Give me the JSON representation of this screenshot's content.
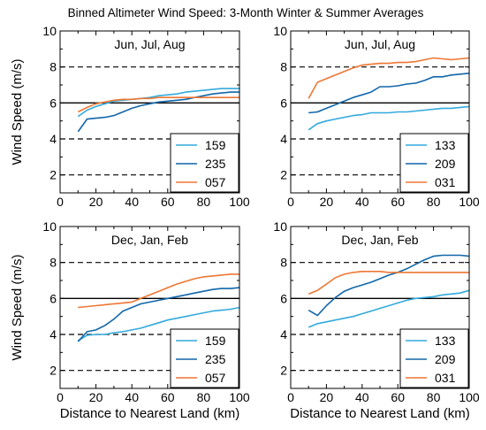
{
  "title": "Binned Altimeter Wind Speed: 3-Month Winter & Summer Averages",
  "colors": {
    "light_blue": "#33aadd",
    "dark_blue": "#1166aa",
    "orange": "#ee7733",
    "reference": "#000000"
  },
  "chart_data": [
    {
      "type": "line",
      "title": "Jun, Jul, Aug",
      "xlabel": "",
      "ylabel": "Wind Speed (m/s)",
      "xlim": [
        0,
        100
      ],
      "ylim": [
        1,
        10
      ],
      "xticks": [
        "0",
        "20",
        "40",
        "60",
        "80",
        "100"
      ],
      "yticks": [
        "2",
        "4",
        "6",
        "8",
        "10"
      ],
      "dashed_lines": [
        2,
        4,
        8
      ],
      "solid_line": 6,
      "legend": "bottom-right",
      "x": [
        10,
        15,
        20,
        25,
        30,
        35,
        40,
        45,
        50,
        55,
        60,
        65,
        70,
        75,
        80,
        85,
        90,
        95,
        100
      ],
      "series": [
        {
          "name": "159",
          "color": "#33aadd",
          "values": [
            5.25,
            5.6,
            5.8,
            5.95,
            6.1,
            6.15,
            6.2,
            6.25,
            6.3,
            6.4,
            6.45,
            6.5,
            6.6,
            6.65,
            6.7,
            6.75,
            6.8,
            6.8,
            6.8
          ]
        },
        {
          "name": "235",
          "color": "#1166aa",
          "values": [
            4.4,
            5.1,
            5.15,
            5.2,
            5.3,
            5.5,
            5.7,
            5.85,
            5.95,
            6.05,
            6.1,
            6.15,
            6.2,
            6.3,
            6.4,
            6.5,
            6.55,
            6.6,
            6.6
          ]
        },
        {
          "name": "057",
          "color": "#ee7733",
          "values": [
            5.5,
            5.75,
            5.95,
            6.05,
            6.15,
            6.2,
            6.2,
            6.25,
            6.25,
            6.3,
            6.3,
            6.3,
            6.3,
            6.3,
            6.3,
            6.3,
            6.3,
            6.3,
            6.3
          ]
        }
      ]
    },
    {
      "type": "line",
      "title": "Jun, Jul, Aug",
      "xlabel": "",
      "ylabel": "",
      "xlim": [
        0,
        100
      ],
      "ylim": [
        1,
        10
      ],
      "xticks": [
        "0",
        "20",
        "40",
        "60",
        "80",
        "100"
      ],
      "yticks": [
        "2",
        "4",
        "6",
        "8",
        "10"
      ],
      "dashed_lines": [
        2,
        4,
        8
      ],
      "solid_line": 6,
      "legend": "bottom-right",
      "x": [
        10,
        15,
        20,
        25,
        30,
        35,
        40,
        45,
        50,
        55,
        60,
        65,
        70,
        75,
        80,
        85,
        90,
        95,
        100
      ],
      "series": [
        {
          "name": "133",
          "color": "#33aadd",
          "values": [
            4.5,
            4.85,
            5.0,
            5.1,
            5.2,
            5.3,
            5.35,
            5.45,
            5.45,
            5.45,
            5.5,
            5.5,
            5.55,
            5.6,
            5.65,
            5.7,
            5.7,
            5.75,
            5.8
          ]
        },
        {
          "name": "209",
          "color": "#1166aa",
          "values": [
            5.45,
            5.5,
            5.7,
            5.9,
            6.1,
            6.3,
            6.45,
            6.6,
            6.9,
            6.9,
            6.95,
            7.05,
            7.1,
            7.25,
            7.45,
            7.45,
            7.55,
            7.6,
            7.65
          ]
        },
        {
          "name": "031",
          "color": "#ee7733",
          "values": [
            6.25,
            7.15,
            7.35,
            7.55,
            7.75,
            7.95,
            8.1,
            8.15,
            8.2,
            8.2,
            8.25,
            8.25,
            8.3,
            8.4,
            8.5,
            8.45,
            8.4,
            8.45,
            8.5
          ]
        }
      ]
    },
    {
      "type": "line",
      "title": "Dec, Jan, Feb",
      "xlabel": "Distance to Nearest Land (km)",
      "ylabel": "Wind Speed (m/s)",
      "xlim": [
        0,
        100
      ],
      "ylim": [
        1,
        10
      ],
      "xticks": [
        "0",
        "20",
        "40",
        "60",
        "80",
        "100"
      ],
      "yticks": [
        "2",
        "4",
        "6",
        "8",
        "10"
      ],
      "dashed_lines": [
        2,
        4,
        8
      ],
      "solid_line": 6,
      "legend": "bottom-right",
      "x": [
        10,
        15,
        20,
        25,
        30,
        35,
        40,
        45,
        50,
        55,
        60,
        65,
        70,
        75,
        80,
        85,
        90,
        95,
        100
      ],
      "series": [
        {
          "name": "159",
          "color": "#33aadd",
          "values": [
            3.65,
            3.95,
            4.0,
            4.0,
            4.1,
            4.15,
            4.25,
            4.35,
            4.5,
            4.65,
            4.8,
            4.9,
            5.0,
            5.1,
            5.2,
            5.3,
            5.35,
            5.4,
            5.5
          ]
        },
        {
          "name": "235",
          "color": "#1166aa",
          "values": [
            3.6,
            4.15,
            4.25,
            4.5,
            4.85,
            5.3,
            5.5,
            5.7,
            5.8,
            5.9,
            6.0,
            6.1,
            6.2,
            6.3,
            6.4,
            6.5,
            6.55,
            6.55,
            6.6
          ]
        },
        {
          "name": "057",
          "color": "#ee7733",
          "values": [
            5.5,
            5.55,
            5.6,
            5.65,
            5.7,
            5.75,
            5.8,
            6.0,
            6.2,
            6.4,
            6.6,
            6.8,
            6.95,
            7.1,
            7.2,
            7.25,
            7.3,
            7.35,
            7.35
          ]
        }
      ]
    },
    {
      "type": "line",
      "title": "Dec, Jan, Feb",
      "xlabel": "Distance to Nearest Land (km)",
      "ylabel": "",
      "xlim": [
        0,
        100
      ],
      "ylim": [
        1,
        10
      ],
      "xticks": [
        "0",
        "20",
        "40",
        "60",
        "80",
        "100"
      ],
      "yticks": [
        "2",
        "4",
        "6",
        "8",
        "10"
      ],
      "dashed_lines": [
        2,
        4,
        8
      ],
      "solid_line": 6,
      "legend": "bottom-right",
      "x": [
        10,
        15,
        20,
        25,
        30,
        35,
        40,
        45,
        50,
        55,
        60,
        65,
        70,
        75,
        80,
        85,
        90,
        95,
        100
      ],
      "series": [
        {
          "name": "133",
          "color": "#33aadd",
          "values": [
            4.4,
            4.6,
            4.7,
            4.8,
            4.9,
            5.0,
            5.15,
            5.3,
            5.45,
            5.6,
            5.75,
            5.9,
            6.0,
            6.05,
            6.1,
            6.2,
            6.25,
            6.3,
            6.45
          ]
        },
        {
          "name": "209",
          "color": "#1166aa",
          "values": [
            5.35,
            5.05,
            5.6,
            6.05,
            6.4,
            6.6,
            6.75,
            6.9,
            7.1,
            7.3,
            7.45,
            7.65,
            7.9,
            8.15,
            8.35,
            8.4,
            8.4,
            8.4,
            8.35
          ]
        },
        {
          "name": "031",
          "color": "#ee7733",
          "values": [
            6.25,
            6.45,
            6.8,
            7.15,
            7.35,
            7.45,
            7.5,
            7.5,
            7.5,
            7.45,
            7.45,
            7.45,
            7.45,
            7.45,
            7.45,
            7.45,
            7.45,
            7.45,
            7.45
          ]
        }
      ]
    }
  ]
}
